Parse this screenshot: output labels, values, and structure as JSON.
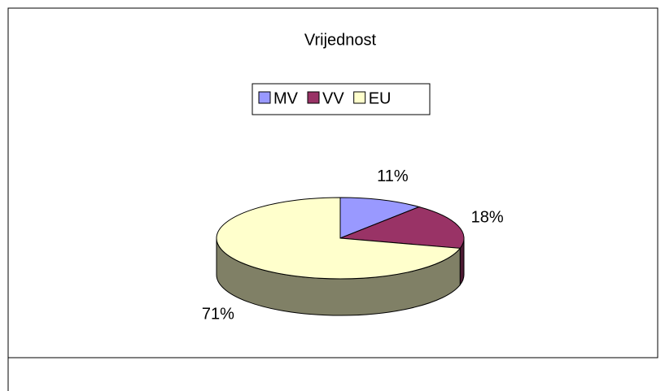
{
  "chart_data": {
    "type": "pie",
    "title": "Vrijednost",
    "categories": [
      "MV",
      "VV",
      "EU"
    ],
    "values": [
      11,
      18,
      71
    ],
    "value_labels": [
      "11%",
      "18%",
      "71%"
    ],
    "colors": [
      "#9999ff",
      "#993366",
      "#ffffcc"
    ],
    "legend": "top"
  }
}
